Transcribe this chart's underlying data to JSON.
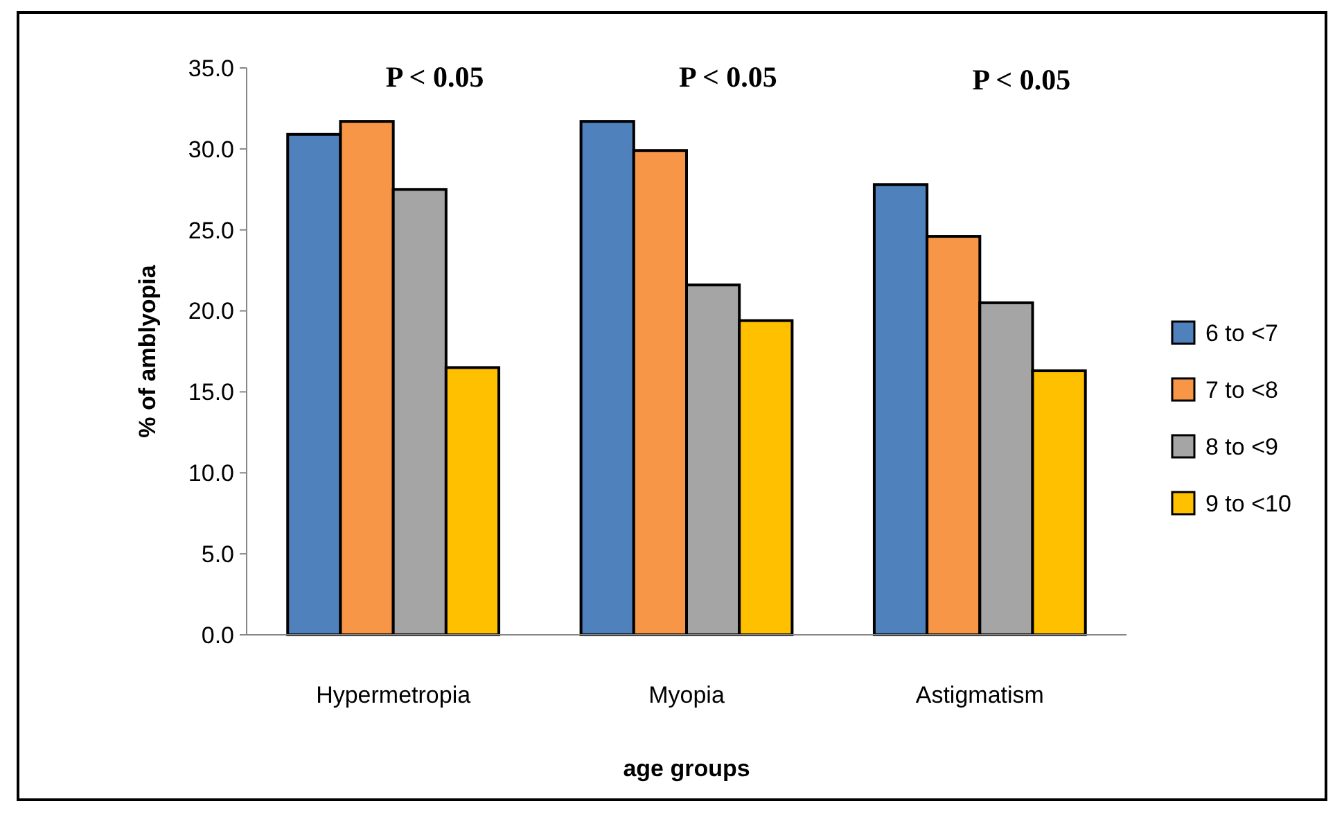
{
  "chart_data": {
    "type": "bar",
    "xlabel": "age groups",
    "ylabel": "% of amblyopia",
    "categories": [
      "Hypermetropia",
      "Myopia",
      "Astigmatism"
    ],
    "series": [
      {
        "name": "6 to <7",
        "color": "#4f81bd",
        "values": [
          30.9,
          31.7,
          27.8
        ]
      },
      {
        "name": "7 to <8",
        "color": "#f79646",
        "values": [
          31.7,
          29.9,
          24.6
        ]
      },
      {
        "name": "8 to <9",
        "color": "#a5a5a5",
        "values": [
          27.5,
          21.6,
          20.5
        ]
      },
      {
        "name": "9 to <10",
        "color": "#ffc000",
        "values": [
          16.5,
          19.4,
          16.3
        ]
      }
    ],
    "ylim": [
      0,
      35
    ],
    "yticks": [
      {
        "value": 0,
        "label": "0.0"
      },
      {
        "value": 5,
        "label": "5.0"
      },
      {
        "value": 10,
        "label": "10.0"
      },
      {
        "value": 15,
        "label": "15.0"
      },
      {
        "value": 20,
        "label": "20.0"
      },
      {
        "value": 25,
        "label": "25.0"
      },
      {
        "value": 30,
        "label": "30.0"
      },
      {
        "value": 35,
        "label": "35.0"
      }
    ],
    "annotations": [
      "P < 0.05",
      "P < 0.05",
      "P < 0.05"
    ],
    "legend": "right",
    "grid": false
  }
}
